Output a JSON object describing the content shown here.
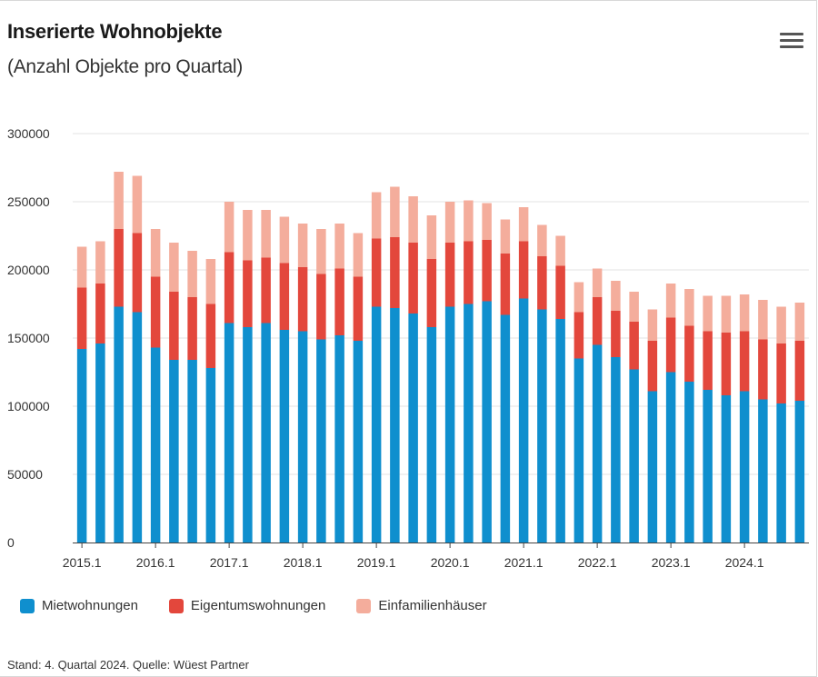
{
  "header": {
    "title": "Inserierte Wohnobjekte",
    "subtitle": "(Anzahl Objekte pro Quartal)"
  },
  "menu": {
    "icon": "hamburger-menu-icon"
  },
  "colors": {
    "Mietwohnungen": "#0f8fce",
    "Eigentumswohnungen": "#e3473c",
    "Einfamilienhäuser": "#f4ad9c"
  },
  "legend": {
    "items": [
      {
        "label": "Mietwohnungen",
        "color": "#0f8fce"
      },
      {
        "label": "Eigentumswohnungen",
        "color": "#e3473c"
      },
      {
        "label": "Einfamilienhäuser",
        "color": "#f4ad9c"
      }
    ]
  },
  "footer": {
    "source": "Stand: 4. Quartal 2024. Quelle: Wüest Partner"
  },
  "chart_data": {
    "type": "bar",
    "stacked": true,
    "title": "Inserierte Wohnobjekte",
    "subtitle": "(Anzahl Objekte pro Quartal)",
    "ylim": [
      0,
      300000
    ],
    "yticks": [
      0,
      50000,
      100000,
      150000,
      200000,
      250000,
      300000
    ],
    "xtick_labels": [
      "2015.1",
      "2016.1",
      "2017.1",
      "2018.1",
      "2019.1",
      "2020.1",
      "2021.1",
      "2022.1",
      "2023.1",
      "2024.1"
    ],
    "grid": true,
    "legend_position": "bottom-left",
    "categories": [
      "2015.1",
      "2015.2",
      "2015.3",
      "2015.4",
      "2016.1",
      "2016.2",
      "2016.3",
      "2016.4",
      "2017.1",
      "2017.2",
      "2017.3",
      "2017.4",
      "2018.1",
      "2018.2",
      "2018.3",
      "2018.4",
      "2019.1",
      "2019.2",
      "2019.3",
      "2019.4",
      "2020.1",
      "2020.2",
      "2020.3",
      "2020.4",
      "2021.1",
      "2021.2",
      "2021.3",
      "2021.4",
      "2022.1",
      "2022.2",
      "2022.3",
      "2022.4",
      "2023.1",
      "2023.2",
      "2023.3",
      "2023.4",
      "2024.1",
      "2024.2",
      "2024.3",
      "2024.4"
    ],
    "series": [
      {
        "name": "Mietwohnungen",
        "values": [
          142000,
          146000,
          173000,
          169000,
          143000,
          134000,
          134000,
          128000,
          161000,
          158000,
          161000,
          156000,
          155000,
          149000,
          152000,
          148000,
          173000,
          172000,
          168000,
          158000,
          173000,
          175000,
          177000,
          167000,
          179000,
          171000,
          164000,
          135000,
          145000,
          136000,
          127000,
          111000,
          125000,
          118000,
          112000,
          108000,
          111000,
          105000,
          102000,
          104000
        ]
      },
      {
        "name": "Eigentumswohnungen",
        "values": [
          45000,
          44000,
          57000,
          58000,
          52000,
          50000,
          46000,
          47000,
          52000,
          49000,
          48000,
          49000,
          47000,
          48000,
          49000,
          47000,
          50000,
          52000,
          52000,
          50000,
          47000,
          46000,
          45000,
          45000,
          42000,
          39000,
          39000,
          34000,
          35000,
          34000,
          35000,
          37000,
          40000,
          41000,
          43000,
          46000,
          44000,
          44000,
          44000,
          44000
        ]
      },
      {
        "name": "Einfamilienhäuser",
        "values": [
          30000,
          31000,
          42000,
          42000,
          35000,
          36000,
          34000,
          33000,
          37000,
          37000,
          35000,
          34000,
          32000,
          33000,
          33000,
          32000,
          34000,
          37000,
          34000,
          32000,
          30000,
          30000,
          27000,
          25000,
          25000,
          23000,
          22000,
          22000,
          21000,
          22000,
          22000,
          23000,
          25000,
          27000,
          26000,
          27000,
          27000,
          29000,
          27000,
          28000
        ]
      }
    ]
  }
}
